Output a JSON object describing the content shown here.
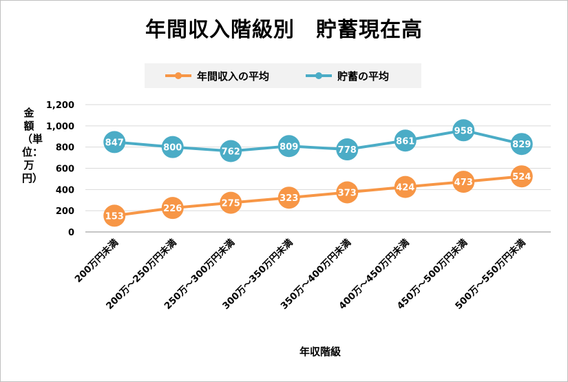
{
  "chart_data": {
    "type": "line",
    "title": "年間収入階級別　貯蓄現在高",
    "xlabel": "年収階級",
    "ylabel": "金額（単位：万円）",
    "categories": [
      "200万円未満",
      "200万～250万円未満",
      "250万～300万円未満",
      "300万～350万円未満",
      "350万～400万円未満",
      "400万～450万円未満",
      "450万～500万円未満",
      "500万～550万円未満"
    ],
    "series": [
      {
        "name": "年間収入の平均",
        "color": "#f79646",
        "values": [
          153,
          226,
          275,
          323,
          373,
          424,
          473,
          524
        ]
      },
      {
        "name": "貯蓄の平均",
        "color": "#4bacc6",
        "values": [
          847,
          800,
          762,
          809,
          778,
          861,
          958,
          829
        ]
      }
    ],
    "ylim": [
      0,
      1200
    ],
    "yticks": [
      "0",
      "200",
      "400",
      "600",
      "800",
      "1,000",
      "1,200"
    ],
    "grid": true,
    "legend_position": "top",
    "data_labels": true
  }
}
